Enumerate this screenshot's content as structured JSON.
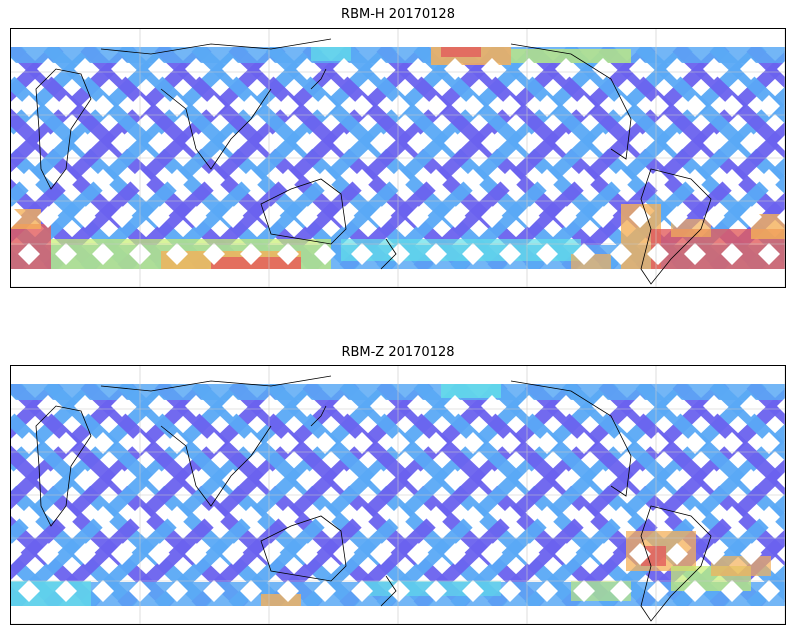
{
  "figure": {
    "panels": [
      {
        "title": "RBM-H 20170128",
        "product": "RBM-H",
        "date": "20170128"
      },
      {
        "title": "RBM-Z 20170128",
        "product": "RBM-Z",
        "date": "20170128"
      }
    ]
  },
  "map": {
    "projection": "plate-carree",
    "central_longitude": 180,
    "coverage": "global swath map of satellite ground tracks",
    "gridlines": true,
    "coastlines": true
  },
  "colors": {
    "low": "#6a62ee",
    "low_mid": "#5aa9f5",
    "mid": "#63e0e8",
    "mid_high": "#c8f070",
    "high": "#f4b05a",
    "very_high": "#e25c5c",
    "coastline": "#000000",
    "gridline": "#c8c8c8"
  }
}
